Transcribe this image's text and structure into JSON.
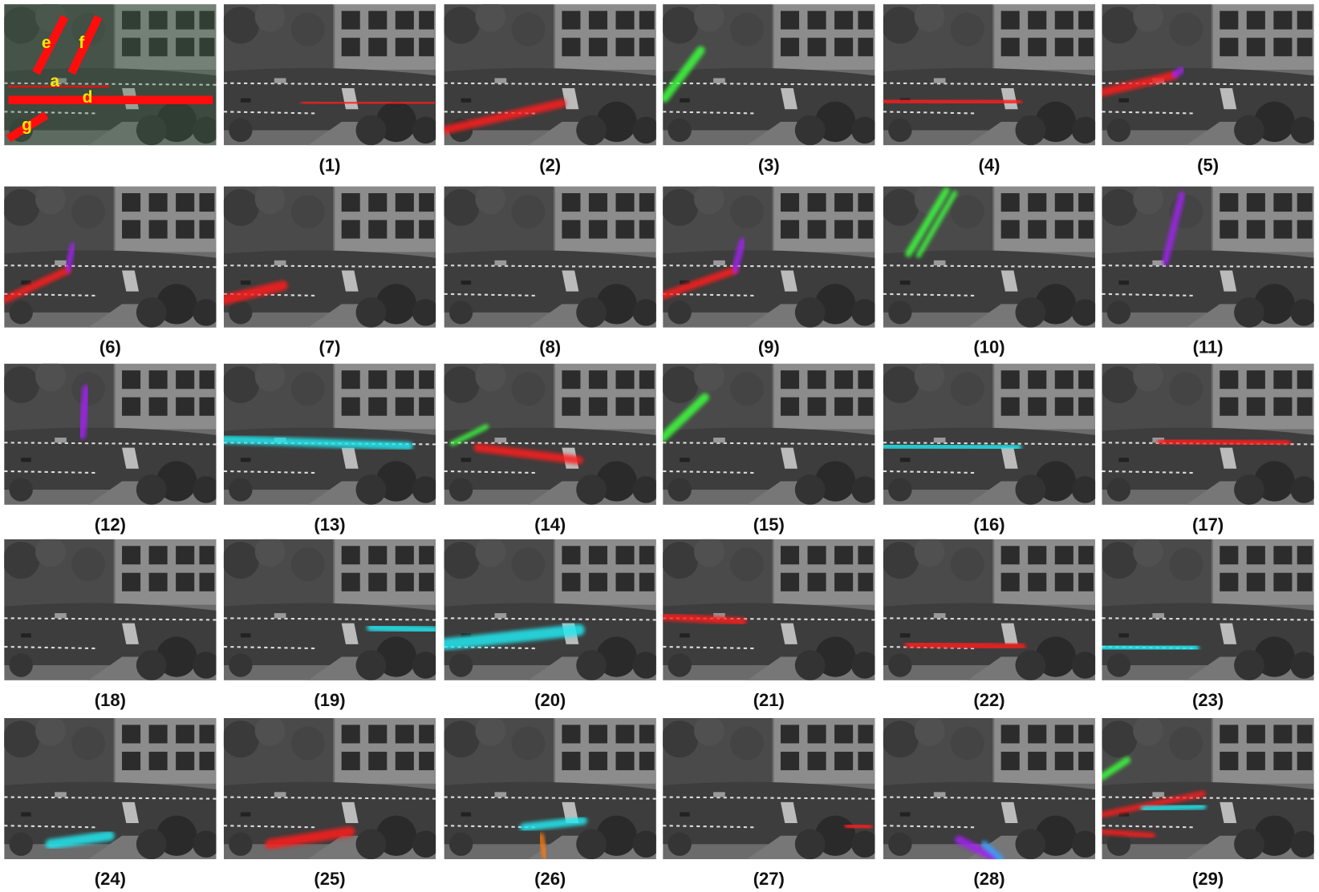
{
  "reference": {
    "labels": [
      "e",
      "f",
      "a",
      "d",
      "g"
    ]
  },
  "panels": [
    "(1)",
    "(2)",
    "(3)",
    "(4)",
    "(5)",
    "(6)",
    "(7)",
    "(8)",
    "(9)",
    "(10)",
    "(11)",
    "(12)",
    "(13)",
    "(14)",
    "(15)",
    "(16)",
    "(17)",
    "(18)",
    "(19)",
    "(20)",
    "(21)",
    "(22)",
    "(23)",
    "(24)",
    "(25)",
    "(26)",
    "(27)",
    "(28)",
    "(29)"
  ]
}
